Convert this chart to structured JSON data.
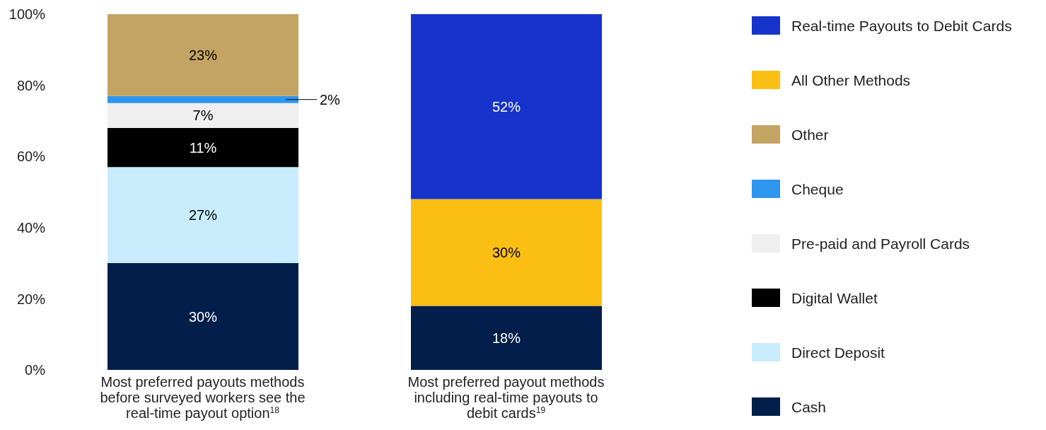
{
  "chart_data": {
    "type": "bar",
    "stacked": true,
    "categories": [
      "Most preferred payouts methods before surveyed workers see the real-time payout option$^{18}$",
      "Most preferred payout methods including real-time payouts to debit cards$^{19}$"
    ],
    "series": [
      {
        "name": "Cash",
        "color": "#031e4a",
        "values": [
          30,
          18
        ],
        "value_labels": [
          "30%",
          "18%"
        ]
      },
      {
        "name": "Direct Deposit",
        "color": "#c8ecfc",
        "values": [
          27,
          null
        ],
        "value_labels": [
          "27%",
          null
        ]
      },
      {
        "name": "Digital Wallet",
        "color": "#000000",
        "values": [
          11,
          null
        ],
        "value_labels": [
          "11%",
          null
        ]
      },
      {
        "name": "Pre-paid and Payroll Cards",
        "color": "#efefef",
        "values": [
          7,
          null
        ],
        "value_labels": [
          "7%",
          null
        ]
      },
      {
        "name": "Cheque",
        "color": "#2f96f0",
        "values": [
          2,
          null
        ],
        "value_labels": [
          "2%",
          null
        ]
      },
      {
        "name": "Other",
        "color": "#c4a462",
        "values": [
          23,
          null
        ],
        "value_labels": [
          "23%",
          null
        ]
      },
      {
        "name": "All Other Methods",
        "color": "#fbbf14",
        "values": [
          null,
          30
        ],
        "value_labels": [
          null,
          "30%"
        ]
      },
      {
        "name": "Real-time Payouts to Debit Cards",
        "color": "#1634cc",
        "values": [
          null,
          52
        ],
        "value_labels": [
          null,
          "52%"
        ]
      }
    ],
    "ylim": [
      0,
      100
    ],
    "yticks": [
      {
        "value": 0,
        "label": "0%"
      },
      {
        "value": 20,
        "label": "20%"
      },
      {
        "value": 40,
        "label": "40%"
      },
      {
        "value": 60,
        "label": "60%"
      },
      {
        "value": 80,
        "label": "80%"
      },
      {
        "value": 100,
        "label": "100%"
      }
    ],
    "grid": false,
    "legend": "right"
  }
}
